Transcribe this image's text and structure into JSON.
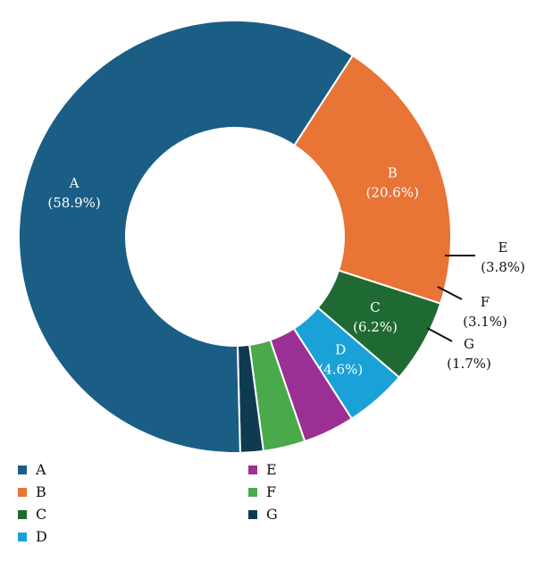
{
  "chart_data": {
    "type": "pie",
    "donut": true,
    "categories": [
      "A",
      "B",
      "C",
      "D",
      "E",
      "F",
      "G"
    ],
    "values": [
      58.9,
      20.6,
      6.2,
      4.6,
      3.8,
      3.1,
      1.7
    ],
    "value_labels": [
      "(58.9%)",
      "(20.6%)",
      "(6.2%)",
      "(4.6%)",
      "(3.8%)",
      "(3.1%)",
      "(1.7%)"
    ],
    "colors": [
      "#1a5e85",
      "#e87435",
      "#1f6a33",
      "#1aa1d7",
      "#9b2f93",
      "#4aaa4b",
      "#0f3b50"
    ],
    "legend_position": "bottom"
  }
}
